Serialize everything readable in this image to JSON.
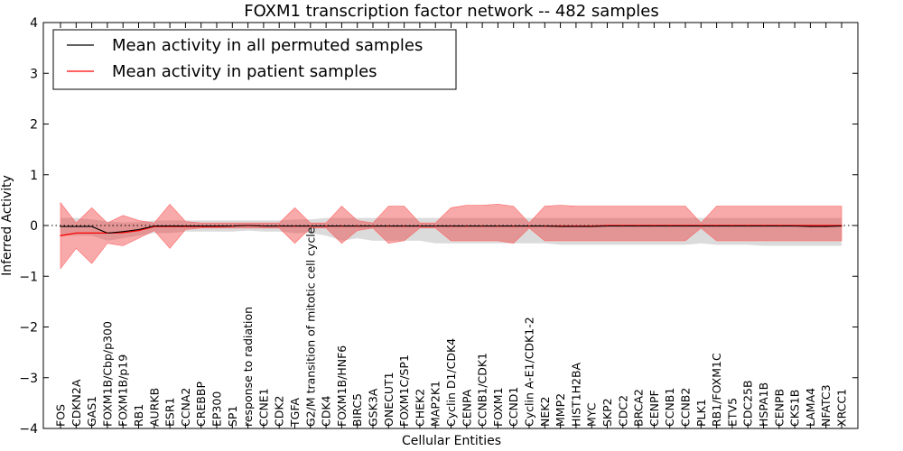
{
  "chart_data": {
    "type": "line",
    "title": "FOXM1 transcription factor network -- 482 samples",
    "xlabel": "Cellular Entities",
    "ylabel": "Inferred Activity",
    "ylim": [
      -4,
      4
    ],
    "yticks": [
      -4,
      -3,
      -2,
      -1,
      0,
      1,
      2,
      3,
      4
    ],
    "ytick_labels": [
      "−4",
      "−3",
      "−2",
      "−1",
      "0",
      "1",
      "2",
      "3",
      "4"
    ],
    "legend_position": "top-left",
    "reference_line": 0,
    "categories": [
      "FOS",
      "CDKN2A",
      "GAS1",
      "FOXM1B/Cbp/p300",
      "FOXM1B/p19",
      "RB1",
      "AURKB",
      "ESR1",
      "CCNA2",
      "CREBBP",
      "EP300",
      "SP1",
      "response to radiation",
      "CCNE1",
      "CDK2",
      "TGFA",
      "G2/M transition of mitotic cell cycle",
      "CDK4",
      "FOXM1B/HNF6",
      "BIRC5",
      "GSK3A",
      "ONECUT1",
      "FOXM1C/SP1",
      "CHEK2",
      "MAP2K1",
      "Cyclin D1/CDK4",
      "CENPA",
      "CCNB1/CDK1",
      "FOXM1",
      "CCND1",
      "Cyclin A-E1/CDK1-2",
      "NEK2",
      "MMP2",
      "HIST1H2BA",
      "MYC",
      "SKP2",
      "CDC2",
      "BRCA2",
      "CENPF",
      "CCNB1",
      "CCNB2",
      "PLK1",
      "RB1/FOXM1C",
      "ETV5",
      "CDC25B",
      "HSPA1B",
      "CENPB",
      "CKS1B",
      "LAMA4",
      "NFATC3",
      "XRCC1"
    ],
    "series": [
      {
        "name": "Mean activity in all permuted samples",
        "color": "#000000",
        "values": [
          -0.02,
          -0.02,
          -0.02,
          -0.15,
          -0.12,
          -0.08,
          -0.01,
          -0.01,
          -0.01,
          -0.01,
          -0.01,
          -0.01,
          0.0,
          -0.01,
          -0.01,
          -0.01,
          -0.01,
          -0.01,
          -0.01,
          -0.01,
          -0.01,
          -0.01,
          -0.01,
          -0.01,
          -0.01,
          -0.01,
          -0.01,
          -0.01,
          -0.01,
          -0.01,
          -0.01,
          -0.01,
          -0.02,
          -0.02,
          -0.02,
          -0.01,
          -0.01,
          -0.01,
          -0.01,
          -0.01,
          -0.01,
          -0.01,
          -0.01,
          -0.01,
          -0.01,
          -0.01,
          -0.01,
          -0.01,
          -0.02,
          -0.02,
          -0.01
        ],
        "band_lower": [
          -0.2,
          -0.2,
          -0.2,
          -0.3,
          -0.25,
          -0.2,
          -0.15,
          -0.15,
          -0.12,
          -0.12,
          -0.12,
          -0.12,
          -0.1,
          -0.12,
          -0.12,
          -0.15,
          -0.15,
          -0.2,
          -0.3,
          -0.25,
          -0.3,
          -0.3,
          -0.3,
          -0.3,
          -0.35,
          -0.35,
          -0.35,
          -0.35,
          -0.35,
          -0.35,
          -0.35,
          -0.35,
          -0.38,
          -0.38,
          -0.38,
          -0.38,
          -0.38,
          -0.38,
          -0.38,
          -0.38,
          -0.38,
          -0.35,
          -0.38,
          -0.38,
          -0.38,
          -0.4,
          -0.4,
          -0.4,
          -0.4,
          -0.4,
          -0.4
        ],
        "band_upper": [
          0.15,
          0.15,
          0.12,
          0.08,
          0.06,
          0.07,
          0.1,
          0.1,
          0.1,
          0.1,
          0.1,
          0.1,
          0.1,
          0.1,
          0.1,
          0.12,
          0.12,
          0.15,
          0.15,
          0.15,
          0.15,
          0.15,
          0.15,
          0.15,
          0.15,
          0.15,
          0.15,
          0.15,
          0.15,
          0.15,
          0.15,
          0.15,
          0.15,
          0.15,
          0.15,
          0.15,
          0.15,
          0.15,
          0.15,
          0.15,
          0.15,
          0.15,
          0.15,
          0.15,
          0.15,
          0.15,
          0.15,
          0.15,
          0.15,
          0.15,
          0.15
        ]
      },
      {
        "name": "Mean activity in patient samples",
        "color": "#ff0000",
        "values": [
          -0.2,
          -0.15,
          -0.15,
          -0.15,
          -0.14,
          -0.1,
          -0.02,
          -0.02,
          -0.02,
          -0.02,
          -0.02,
          -0.01,
          0.0,
          -0.01,
          -0.01,
          -0.01,
          -0.01,
          -0.01,
          -0.01,
          -0.01,
          -0.01,
          -0.01,
          -0.01,
          -0.01,
          -0.01,
          -0.01,
          -0.01,
          -0.01,
          -0.01,
          -0.01,
          -0.01,
          -0.01,
          -0.01,
          -0.01,
          -0.01,
          0.0,
          0.0,
          0.0,
          0.0,
          0.0,
          0.0,
          0.0,
          0.0,
          0.0,
          0.0,
          0.0,
          0.0,
          0.0,
          0.0,
          0.0,
          0.0
        ],
        "band_lower": [
          -0.85,
          -0.45,
          -0.75,
          -0.35,
          -0.4,
          -0.25,
          -0.1,
          -0.45,
          -0.08,
          -0.05,
          -0.05,
          -0.05,
          -0.05,
          -0.05,
          -0.05,
          -0.35,
          -0.05,
          -0.05,
          -0.35,
          -0.1,
          -0.05,
          -0.35,
          -0.3,
          -0.05,
          -0.05,
          -0.3,
          -0.3,
          -0.3,
          -0.3,
          -0.35,
          -0.05,
          -0.3,
          -0.3,
          -0.3,
          -0.3,
          -0.3,
          -0.3,
          -0.3,
          -0.3,
          -0.3,
          -0.3,
          -0.05,
          -0.3,
          -0.3,
          -0.3,
          -0.3,
          -0.3,
          -0.3,
          -0.3,
          -0.3,
          -0.3
        ],
        "band_upper": [
          0.45,
          0.05,
          0.35,
          0.05,
          0.2,
          0.1,
          0.05,
          0.42,
          0.08,
          0.05,
          0.05,
          0.05,
          0.05,
          0.05,
          0.05,
          0.35,
          0.05,
          0.05,
          0.38,
          0.1,
          0.05,
          0.38,
          0.38,
          0.05,
          0.05,
          0.35,
          0.4,
          0.4,
          0.42,
          0.38,
          0.05,
          0.38,
          0.4,
          0.38,
          0.38,
          0.38,
          0.38,
          0.38,
          0.38,
          0.38,
          0.38,
          0.05,
          0.38,
          0.38,
          0.38,
          0.38,
          0.38,
          0.38,
          0.38,
          0.38,
          0.38
        ]
      }
    ]
  }
}
